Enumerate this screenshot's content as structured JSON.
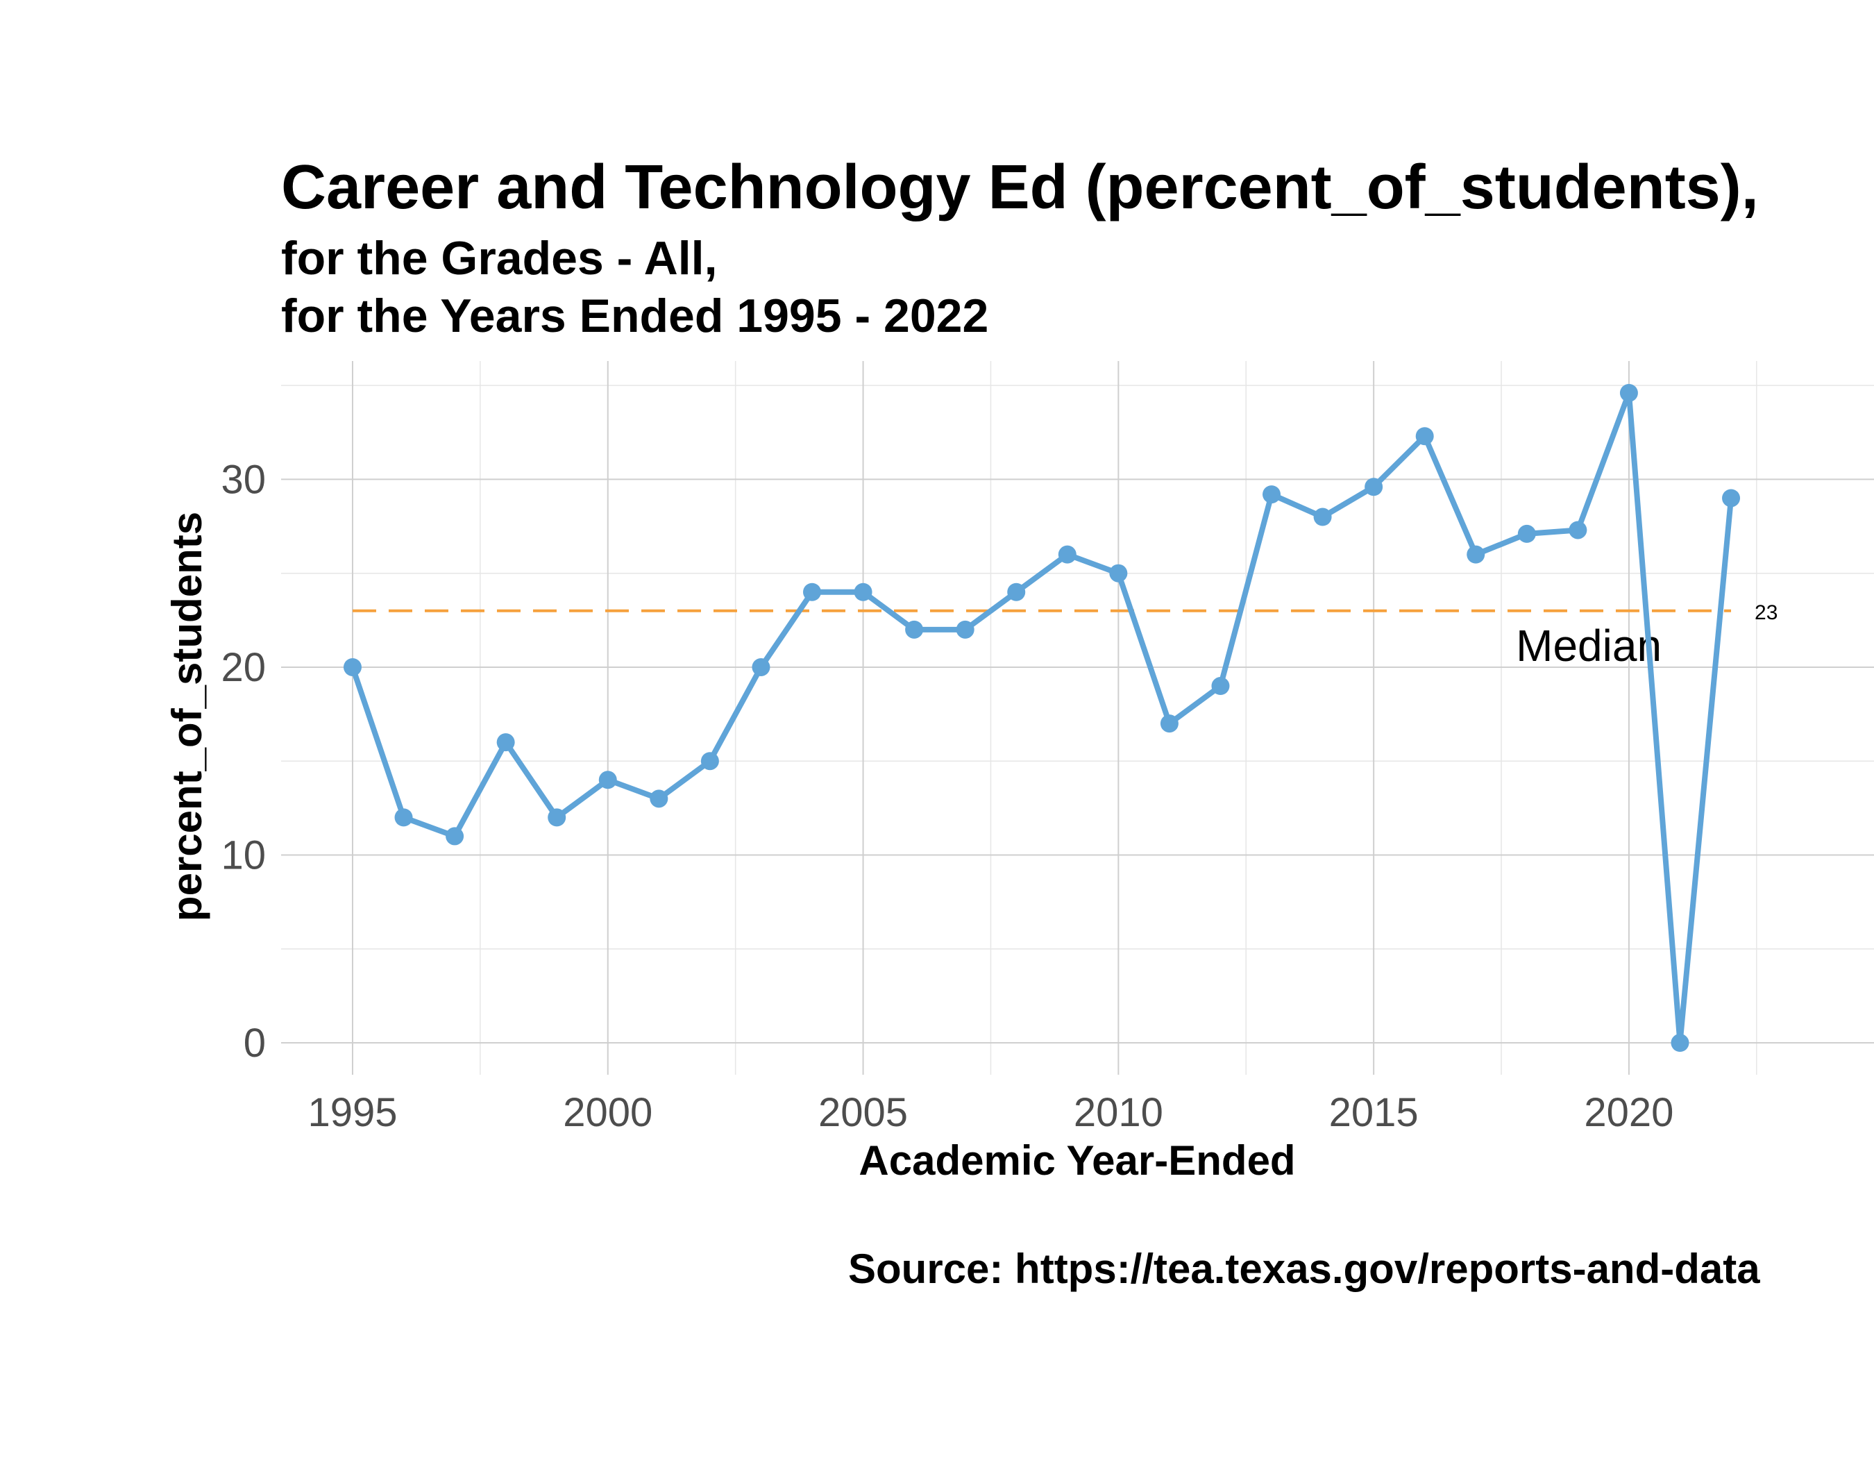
{
  "chart_data": {
    "type": "line",
    "title": "Career and Technology Ed (percent_of_students),",
    "subtitle_lines": [
      "for the Grades - All,",
      "for the Years Ended 1995  -  2022"
    ],
    "xlabel": "Academic Year-Ended",
    "ylabel": "percent_of_students",
    "caption": "Source:  https://tea.texas.gov/reports-and-data",
    "x_ticks": [
      1995,
      2000,
      2005,
      2010,
      2015,
      2020
    ],
    "y_ticks": [
      0,
      10,
      20,
      30
    ],
    "xlim": [
      1993.6,
      2024.8
    ],
    "ylim": [
      -1.7,
      36.3
    ],
    "grid": true,
    "x": [
      1995,
      1996,
      1997,
      1998,
      1999,
      2000,
      2001,
      2002,
      2003,
      2004,
      2005,
      2006,
      2007,
      2008,
      2009,
      2010,
      2011,
      2012,
      2013,
      2014,
      2015,
      2016,
      2017,
      2018,
      2019,
      2020,
      2021,
      2022
    ],
    "series": [
      {
        "values": [
          20,
          12,
          11,
          16,
          12,
          14,
          13,
          15,
          20,
          24,
          24,
          22,
          22,
          24,
          26,
          25,
          17,
          19,
          29.2,
          28,
          29.6,
          32.3,
          26,
          27.1,
          27.3,
          34.6,
          0,
          29
        ],
        "color": "#5fa4d8"
      }
    ],
    "reference_line": {
      "value": 23,
      "label": "Median",
      "value_label": "23",
      "color": "#f6a13c"
    }
  }
}
